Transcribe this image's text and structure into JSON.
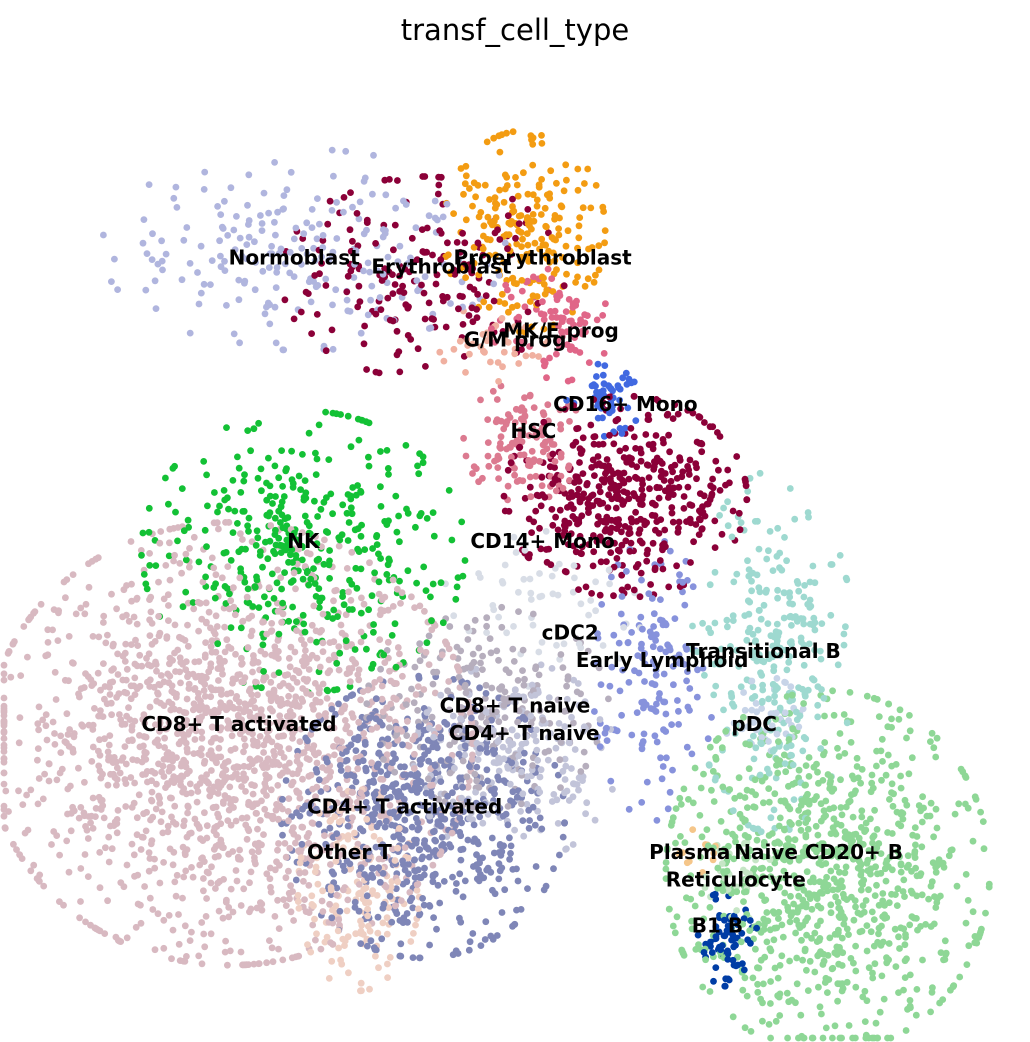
{
  "chart_data": {
    "type": "scatter",
    "title": "transf_cell_type",
    "xlabel": "",
    "ylabel": "",
    "axes_visible": false,
    "grid": false,
    "legend": "on data",
    "xlim": [
      0,
      100
    ],
    "ylim": [
      0,
      100
    ],
    "series": [
      {
        "name": "Normoblast",
        "color": "#b0b5de",
        "center": [
          27,
          82
        ],
        "spread": [
          10,
          5
        ],
        "n": 220,
        "label": [
          26,
          81
        ]
      },
      {
        "name": "Erythroblast",
        "color": "#8b0038",
        "center": [
          40,
          79
        ],
        "spread": [
          7,
          5
        ],
        "n": 180,
        "label": [
          42,
          80
        ]
      },
      {
        "name": "Proerythroblast",
        "color": "#f39c12",
        "center": [
          51,
          84
        ],
        "spread": [
          4,
          5
        ],
        "n": 220,
        "label": [
          53,
          81
        ]
      },
      {
        "name": "MK/E prog",
        "color": "#e06688",
        "center": [
          54,
          74
        ],
        "spread": [
          3,
          3
        ],
        "n": 80,
        "label": [
          55,
          73
        ]
      },
      {
        "name": "G/M prog",
        "color": "#f0b0a0",
        "center": [
          48,
          72
        ],
        "spread": [
          3,
          2
        ],
        "n": 40,
        "label": [
          50,
          72
        ]
      },
      {
        "name": "CD16+ Mono",
        "color": "#4169e1",
        "center": [
          60,
          66
        ],
        "spread": [
          2,
          2
        ],
        "n": 50,
        "label": [
          62,
          65
        ]
      },
      {
        "name": "HSC",
        "color": "#dc7a90",
        "center": [
          51,
          61
        ],
        "spread": [
          3,
          3
        ],
        "n": 120,
        "label": [
          52,
          62
        ]
      },
      {
        "name": "CD14+ Mono",
        "color": "#8b0038",
        "center": [
          62,
          55
        ],
        "spread": [
          6,
          5
        ],
        "n": 450,
        "label": [
          53,
          50
        ]
      },
      {
        "name": "cDC2",
        "color": "#d8dde6",
        "center": [
          53,
          43
        ],
        "spread": [
          5,
          4
        ],
        "n": 60,
        "label": [
          56,
          40
        ]
      },
      {
        "name": "Early Lymphoid",
        "color": "#8792dc",
        "center": [
          65,
          35
        ],
        "spread": [
          3,
          7
        ],
        "n": 150,
        "label": [
          66,
          37
        ]
      },
      {
        "name": "Transitional B",
        "color": "#9ed9d0",
        "center": [
          78,
          38
        ],
        "spread": [
          4,
          9
        ],
        "n": 280,
        "label": [
          77,
          38
        ]
      },
      {
        "name": "pDC",
        "color": "#c7d4e8",
        "center": [
          77,
          31
        ],
        "spread": [
          2,
          2
        ],
        "n": 40,
        "label": [
          76,
          30
        ]
      },
      {
        "name": "NK",
        "color": "#13c135",
        "center": [
          27,
          49
        ],
        "spread": [
          8,
          7
        ],
        "n": 400,
        "label": [
          27,
          50
        ]
      },
      {
        "name": "CD8+ T activated",
        "color": "#d8b9c1",
        "center": [
          19,
          28
        ],
        "spread": [
          12,
          11
        ],
        "n": 1700,
        "label": [
          20,
          30
        ]
      },
      {
        "name": "CD8+ T naive",
        "color": "#b6aebd",
        "center": [
          47,
          32
        ],
        "spread": [
          6,
          5
        ],
        "n": 220,
        "label": [
          50,
          32
        ]
      },
      {
        "name": "CD4+ T naive",
        "color": "#c2c4d9",
        "center": [
          50,
          26
        ],
        "spread": [
          5,
          5
        ],
        "n": 200,
        "label": [
          51,
          29
        ]
      },
      {
        "name": "CD4+ T activated",
        "color": "#7f86b7",
        "center": [
          40,
          20
        ],
        "spread": [
          7,
          7
        ],
        "n": 650,
        "label": [
          38,
          21
        ]
      },
      {
        "name": "Other T",
        "color": "#efcfc3",
        "center": [
          33,
          12
        ],
        "spread": [
          3,
          5
        ],
        "n": 160,
        "label": [
          32,
          16
        ]
      },
      {
        "name": "Naive CD20+ B",
        "color": "#8ed796",
        "center": [
          84,
          14
        ],
        "spread": [
          8,
          9
        ],
        "n": 900,
        "label": [
          83,
          16
        ]
      },
      {
        "name": "Plasma",
        "color": "#f5c68a",
        "center": [
          70,
          16
        ],
        "spread": [
          1,
          2
        ],
        "n": 12,
        "label": [
          69,
          16
        ]
      },
      {
        "name": "Reticulocyte",
        "color": "#c6e6c6",
        "center": [
          74,
          13
        ],
        "spread": [
          2,
          2
        ],
        "n": 30,
        "label": [
          74,
          13
        ]
      },
      {
        "name": "B1 B",
        "color": "#003da5",
        "center": [
          73,
          7
        ],
        "spread": [
          1.5,
          2.5
        ],
        "n": 70,
        "label": [
          72,
          8
        ]
      }
    ]
  }
}
